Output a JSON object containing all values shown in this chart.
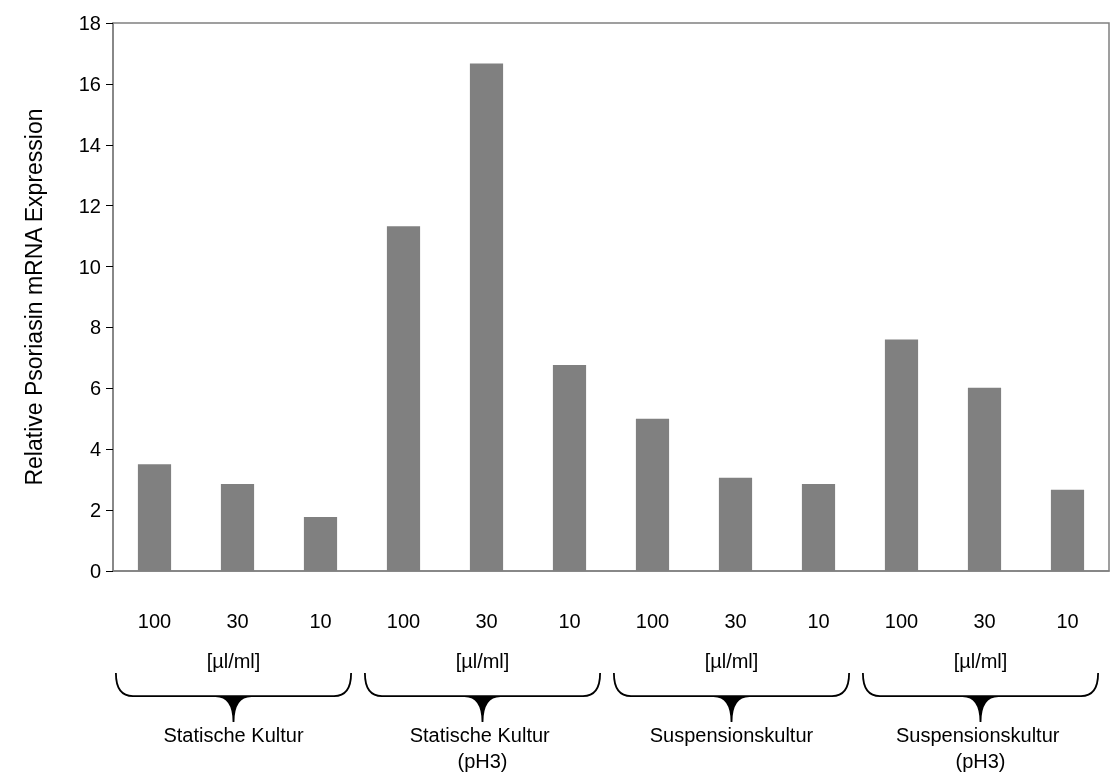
{
  "chart_data": {
    "type": "bar",
    "ylabel": "Relative Psoriasin mRNA Expression",
    "categories": [
      "100",
      "30",
      "10",
      "100",
      "30",
      "10",
      "100",
      "30",
      "10",
      "100",
      "30",
      "10"
    ],
    "values": [
      3.51,
      2.86,
      1.77,
      11.32,
      16.67,
      6.77,
      5.0,
      3.06,
      2.86,
      7.6,
      6.02,
      2.67
    ],
    "color": "#808080",
    "ylim": [
      0,
      18
    ],
    "yticks": [
      0,
      2,
      4,
      6,
      8,
      10,
      12,
      14,
      16,
      18
    ],
    "annotations": [
      "[µl/ml]",
      "Statische Kultur",
      "[µl/ml]",
      "Statische Kultur (pH3)",
      "[µl/ml]",
      "Suspensionskultur",
      "[µl/ml]",
      "Suspensionskultur (pH3)"
    ]
  }
}
